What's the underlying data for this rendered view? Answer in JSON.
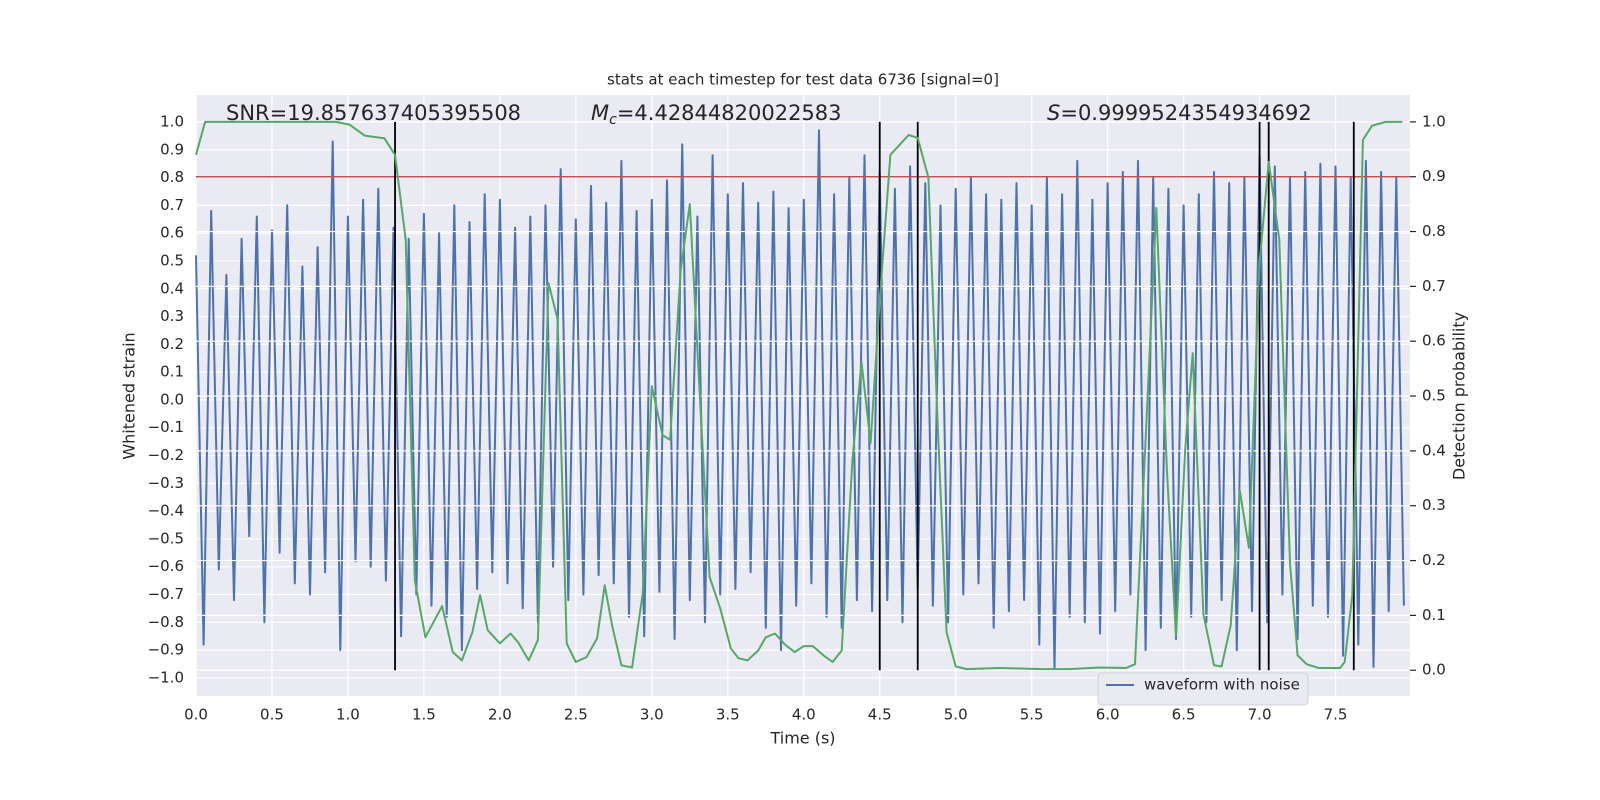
{
  "chart_data": {
    "type": "line",
    "title": "stats at each timestep for test data 6736 [signal=0]",
    "xlabel": "Time (s)",
    "ylabel": "Whitened strain",
    "y2label": "Detection probability",
    "annotations": [
      {
        "text": "SNR=19.857637405395508"
      },
      {
        "symbol": "M",
        "subscript": "c",
        "text": "=4.42844820022583"
      },
      {
        "symbol": "S",
        "text": "=0.9999524354934692"
      }
    ],
    "xlim": [
      0,
      7.99
    ],
    "ylim": [
      -1.065,
      1.097
    ],
    "y2lim": [
      -0.047,
      1.049
    ],
    "xticks": [
      {
        "value": 0,
        "label": "0.0"
      },
      {
        "value": 0.5,
        "label": "0.5"
      },
      {
        "value": 1,
        "label": "1.0"
      },
      {
        "value": 1.5,
        "label": "1.5"
      },
      {
        "value": 2,
        "label": "2.0"
      },
      {
        "value": 2.5,
        "label": "2.5"
      },
      {
        "value": 3,
        "label": "3.0"
      },
      {
        "value": 3.5,
        "label": "3.5"
      },
      {
        "value": 4,
        "label": "4.0"
      },
      {
        "value": 4.5,
        "label": "4.5"
      },
      {
        "value": 5,
        "label": "5.0"
      },
      {
        "value": 5.5,
        "label": "5.5"
      },
      {
        "value": 6,
        "label": "6.0"
      },
      {
        "value": 6.5,
        "label": "6.5"
      },
      {
        "value": 7,
        "label": "7.0"
      },
      {
        "value": 7.5,
        "label": "7.5"
      }
    ],
    "yticks": [
      {
        "value": 1,
        "label": "1.0"
      },
      {
        "value": 0.9,
        "label": "0.9"
      },
      {
        "value": 0.8,
        "label": "0.8"
      },
      {
        "value": 0.7,
        "label": "0.7"
      },
      {
        "value": 0.6,
        "label": "0.6"
      },
      {
        "value": 0.5,
        "label": "0.5"
      },
      {
        "value": 0.4,
        "label": "0.4"
      },
      {
        "value": 0.3,
        "label": "0.3"
      },
      {
        "value": 0.2,
        "label": "0.2"
      },
      {
        "value": 0.1,
        "label": "0.1"
      },
      {
        "value": 0,
        "label": "0.0"
      },
      {
        "value": -0.1,
        "label": "−0.1"
      },
      {
        "value": -0.2,
        "label": "−0.2"
      },
      {
        "value": -0.3,
        "label": "−0.3"
      },
      {
        "value": -0.4,
        "label": "−0.4"
      },
      {
        "value": -0.5,
        "label": "−0.5"
      },
      {
        "value": -0.6,
        "label": "−0.6"
      },
      {
        "value": -0.7,
        "label": "−0.7"
      },
      {
        "value": -0.8,
        "label": "−0.8"
      },
      {
        "value": -0.9,
        "label": "−0.9"
      },
      {
        "value": -1,
        "label": "−1.0"
      }
    ],
    "y2ticks": [
      {
        "value": 1,
        "label": "1.0"
      },
      {
        "value": 0.9,
        "label": "0.9"
      },
      {
        "value": 0.8,
        "label": "0.8"
      },
      {
        "value": 0.7,
        "label": "0.7"
      },
      {
        "value": 0.6,
        "label": "0.6"
      },
      {
        "value": 0.5,
        "label": "0.5"
      },
      {
        "value": 0.4,
        "label": "0.4"
      },
      {
        "value": 0.3,
        "label": "0.3"
      },
      {
        "value": 0.2,
        "label": "0.2"
      },
      {
        "value": 0.1,
        "label": "0.1"
      },
      {
        "value": 0,
        "label": "0.0"
      }
    ],
    "grid": true,
    "legend": "lower right",
    "series": [
      {
        "name": "waveform with noise",
        "color": "#4c72b0",
        "axis": "y",
        "x": [
          0,
          0.05,
          0.1,
          0.15,
          0.2,
          0.25,
          0.3,
          0.35,
          0.4,
          0.45,
          0.5,
          0.55,
          0.6,
          0.65,
          0.7,
          0.75,
          0.8,
          0.85,
          0.9,
          0.95,
          1,
          1.05,
          1.1,
          1.15,
          1.2,
          1.25,
          1.3,
          1.35,
          1.4,
          1.45,
          1.5,
          1.55,
          1.6,
          1.65,
          1.7,
          1.75,
          1.8,
          1.85,
          1.9,
          1.95,
          2,
          2.05,
          2.1,
          2.15,
          2.2,
          2.25,
          2.3,
          2.35,
          2.4,
          2.45,
          2.5,
          2.55,
          2.6,
          2.65,
          2.7,
          2.75,
          2.8,
          2.85,
          2.9,
          2.95,
          3,
          3.05,
          3.1,
          3.15,
          3.2,
          3.25,
          3.3,
          3.35,
          3.4,
          3.45,
          3.5,
          3.55,
          3.6,
          3.65,
          3.7,
          3.75,
          3.8,
          3.85,
          3.9,
          3.95,
          4,
          4.05,
          4.1,
          4.15,
          4.2,
          4.25,
          4.3,
          4.35,
          4.4,
          4.45,
          4.5,
          4.55,
          4.6,
          4.65,
          4.7,
          4.75,
          4.8,
          4.85,
          4.9,
          4.95,
          5,
          5.05,
          5.1,
          5.15,
          5.2,
          5.25,
          5.3,
          5.35,
          5.4,
          5.45,
          5.5,
          5.55,
          5.6,
          5.65,
          5.7,
          5.75,
          5.8,
          5.85,
          5.9,
          5.95,
          6,
          6.05,
          6.1,
          6.15,
          6.2,
          6.25,
          6.3,
          6.35,
          6.4,
          6.45,
          6.5,
          6.55,
          6.6,
          6.65,
          6.7,
          6.75,
          6.8,
          6.85,
          6.9,
          6.95,
          7,
          7.05,
          7.1,
          7.15,
          7.2,
          7.25,
          7.3,
          7.35,
          7.4,
          7.45,
          7.5,
          7.55,
          7.6,
          7.65,
          7.7,
          7.75,
          7.8,
          7.85,
          7.9,
          7.95
        ],
        "values": [
          0.52,
          -0.88,
          0.68,
          -0.61,
          0.45,
          -0.72,
          0.58,
          -0.49,
          0.66,
          -0.8,
          0.61,
          -0.55,
          0.7,
          -0.66,
          0.48,
          -0.7,
          0.55,
          -0.62,
          0.93,
          -0.9,
          0.66,
          -0.58,
          0.72,
          -0.6,
          0.76,
          -0.65,
          0.62,
          -0.85,
          0.58,
          -0.7,
          0.67,
          -0.74,
          0.6,
          -0.78,
          0.7,
          -0.9,
          0.64,
          -0.68,
          0.74,
          -0.62,
          0.72,
          -0.66,
          0.62,
          -0.75,
          0.66,
          -0.8,
          0.7,
          -0.6,
          0.83,
          -0.72,
          0.65,
          -0.7,
          0.77,
          -0.63,
          0.71,
          -0.66,
          0.86,
          -0.78,
          0.68,
          -0.85,
          0.72,
          -0.69,
          0.79,
          -0.86,
          0.92,
          -0.72,
          0.66,
          -0.8,
          0.88,
          -0.7,
          0.74,
          -0.68,
          0.78,
          -0.62,
          0.71,
          -0.82,
          0.75,
          -0.9,
          0.69,
          -0.74,
          0.72,
          -0.66,
          0.97,
          -0.78,
          0.74,
          -0.82,
          0.8,
          -0.72,
          0.88,
          -0.76,
          0.82,
          -0.72,
          0.76,
          -0.8,
          0.84,
          -0.68,
          0.78,
          -0.74,
          0.7,
          -0.8,
          0.76,
          -0.7,
          0.8,
          -0.66,
          0.74,
          -0.82,
          0.72,
          -0.76,
          0.78,
          -0.72,
          0.7,
          -0.88,
          0.8,
          -0.97,
          0.74,
          -0.78,
          0.86,
          -0.8,
          0.72,
          -0.84,
          0.78,
          -0.76,
          0.82,
          -0.7,
          0.86,
          -0.9,
          0.8,
          -0.82,
          0.76,
          -0.86,
          0.7,
          -0.78,
          0.74,
          -0.8,
          0.82,
          -0.72,
          0.78,
          -0.9,
          0.8,
          -0.76,
          0.88,
          -0.8,
          0.84,
          -0.7,
          0.8,
          -0.86,
          0.82,
          -0.74,
          0.85,
          -0.78,
          0.84,
          -0.92,
          0.8,
          -0.88,
          0.86,
          -0.96,
          0.82,
          -0.76,
          0.8,
          -0.74
        ]
      },
      {
        "color": "#55a868",
        "axis": "y2",
        "x": [
          0,
          0.06,
          0.92,
          1.01,
          1.11,
          1.24,
          1.31,
          1.38,
          1.44,
          1.51,
          1.62,
          1.69,
          1.75,
          1.82,
          1.87,
          1.92,
          2.0,
          2.07,
          2.12,
          2.19,
          2.25,
          2.32,
          2.38,
          2.44,
          2.5,
          2.57,
          2.64,
          2.69,
          2.74,
          2.8,
          2.87,
          2.94,
          3.0,
          3.07,
          3.12,
          3.19,
          3.25,
          3.32,
          3.38,
          3.45,
          3.52,
          3.57,
          3.63,
          3.7,
          3.75,
          3.81,
          3.88,
          3.94,
          4.0,
          4.06,
          4.13,
          4.19,
          4.25,
          4.32,
          4.38,
          4.44,
          4.5,
          4.57,
          4.63,
          4.69,
          4.75,
          4.82,
          4.88,
          4.94,
          5.0,
          5.07,
          5.29,
          5.56,
          5.75,
          5.95,
          6.12,
          6.18,
          6.25,
          6.32,
          6.39,
          6.45,
          6.51,
          6.56,
          6.63,
          6.7,
          6.75,
          6.81,
          6.87,
          6.93,
          7.0,
          7.06,
          7.13,
          7.2,
          7.25,
          7.31,
          7.39,
          7.53,
          7.56,
          7.61,
          7.68,
          7.74,
          7.83,
          7.94
        ],
        "values": [
          0.94,
          1.0,
          1.0,
          0.995,
          0.975,
          0.97,
          0.94,
          0.785,
          0.164,
          0.06,
          0.117,
          0.033,
          0.018,
          0.07,
          0.137,
          0.073,
          0.049,
          0.067,
          0.051,
          0.018,
          0.055,
          0.706,
          0.64,
          0.049,
          0.015,
          0.024,
          0.058,
          0.155,
          0.08,
          0.009,
          0.005,
          0.14,
          0.518,
          0.429,
          0.42,
          0.73,
          0.85,
          0.48,
          0.17,
          0.113,
          0.04,
          0.022,
          0.018,
          0.036,
          0.06,
          0.067,
          0.046,
          0.033,
          0.044,
          0.044,
          0.027,
          0.015,
          0.036,
          0.383,
          0.562,
          0.414,
          0.675,
          0.94,
          0.958,
          0.976,
          0.971,
          0.898,
          0.456,
          0.069,
          0.007,
          0.002,
          0.004,
          0.002,
          0.002,
          0.005,
          0.004,
          0.011,
          0.42,
          0.843,
          0.365,
          0.062,
          0.4,
          0.578,
          0.102,
          0.009,
          0.007,
          0.082,
          0.328,
          0.223,
          0.745,
          0.927,
          0.785,
          0.195,
          0.027,
          0.011,
          0.004,
          0.004,
          0.015,
          0.137,
          0.967,
          0.993,
          1.0,
          1.0
        ]
      }
    ],
    "hlines": [
      {
        "y": 0.9,
        "axis": "y2",
        "color": "#c44e52"
      }
    ],
    "vlines": {
      "x": [
        1.31,
        4.5,
        4.75,
        7.0,
        7.06,
        7.62
      ],
      "ymin": 0,
      "ymax": 1,
      "axis": "y2",
      "color": "#000000"
    }
  }
}
